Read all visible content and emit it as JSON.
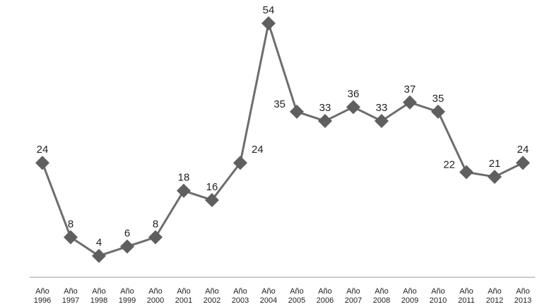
{
  "chart_data": {
    "type": "line",
    "title": "",
    "xlabel": "",
    "ylabel": "",
    "categories": [
      [
        "Año",
        "1996"
      ],
      [
        "Año",
        "1997"
      ],
      [
        "Año",
        "1998"
      ],
      [
        "Año",
        "1999"
      ],
      [
        "Año",
        "2000"
      ],
      [
        "Año",
        "2001"
      ],
      [
        "Año",
        "2002"
      ],
      [
        "Año",
        "2003"
      ],
      [
        "Año",
        "2004"
      ],
      [
        "Año",
        "2005"
      ],
      [
        "Año",
        "2006"
      ],
      [
        "Año",
        "2007"
      ],
      [
        "Año",
        "2008"
      ],
      [
        "Año",
        "2009"
      ],
      [
        "Año",
        "2010"
      ],
      [
        "Año",
        "2011"
      ],
      [
        "Año",
        "2012"
      ],
      [
        "Año",
        "2013"
      ]
    ],
    "values": [
      24,
      8,
      4,
      6,
      8,
      18,
      16,
      24,
      54,
      35,
      33,
      36,
      33,
      37,
      35,
      22,
      21,
      24
    ],
    "value_labels": [
      "24",
      "8",
      "4",
      "6",
      "8",
      "18",
      "16",
      "24",
      "54",
      "35",
      "33",
      "36",
      "33",
      "37",
      "35",
      "22",
      "21",
      "24"
    ],
    "ylim": [
      0,
      54
    ],
    "grid": false,
    "legend": "none",
    "line_color": "#6d6d6d",
    "marker": "diamond",
    "marker_color": "#5f5f5f",
    "axis_color": "#9a9a9a"
  }
}
